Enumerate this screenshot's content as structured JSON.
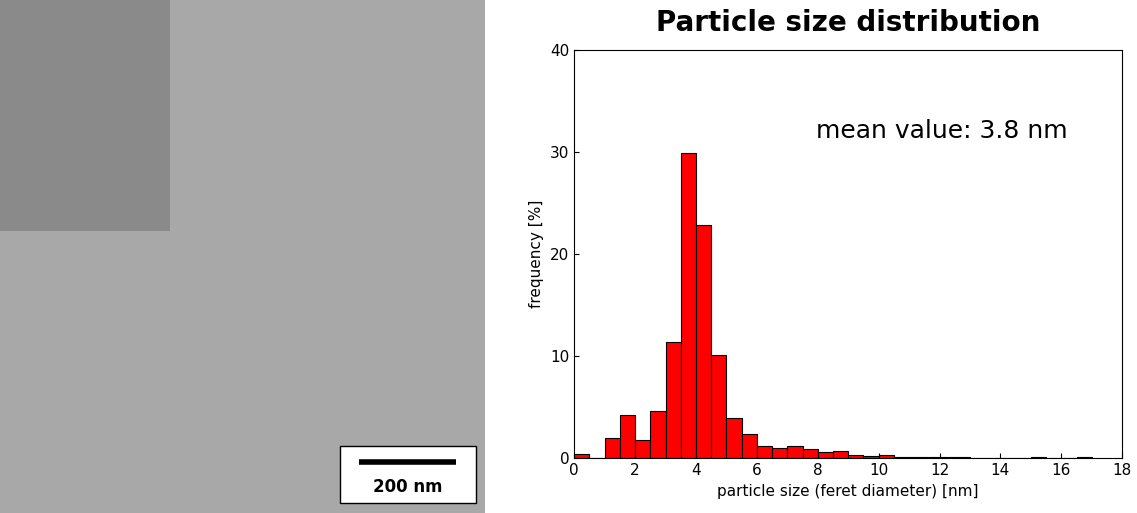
{
  "micrograph": {
    "scale_bar_label": "200 nm"
  },
  "chart_data": {
    "type": "histogram",
    "title": "Particle size distribution",
    "annotation": "mean value: 3.8 nm",
    "x_label": "particle size (feret diameter) [nm]",
    "y_label": "frequency [%]",
    "bins": [
      0,
      0.5,
      1,
      1.5,
      2,
      2.5,
      3,
      3.5,
      4,
      4.5,
      5,
      5.5,
      6,
      6.5,
      7,
      7.5,
      8,
      8.5,
      9,
      9.5,
      10,
      10.5,
      11,
      11.5,
      12,
      12.5,
      13,
      13.5,
      14,
      14.5,
      15,
      15.5,
      16,
      16.5,
      17
    ],
    "values": [
      0.4,
      0,
      2.0,
      4.2,
      1.8,
      4.6,
      11.4,
      29.9,
      22.8,
      10.1,
      3.9,
      2.4,
      1.2,
      1.0,
      1.2,
      0.9,
      0.6,
      0.7,
      0.3,
      0.2,
      0.3,
      0.1,
      0.15,
      0.1,
      0.1,
      0.1,
      0,
      0,
      0,
      0,
      0.1,
      0,
      0,
      0.1
    ],
    "color": "#ff0000",
    "xlim": [
      0,
      18
    ],
    "xticks": [
      0,
      2,
      4,
      6,
      8,
      10,
      12,
      14,
      16,
      18
    ],
    "ylim": [
      0,
      40
    ],
    "yticks": [
      0,
      10,
      20,
      30,
      40
    ]
  }
}
